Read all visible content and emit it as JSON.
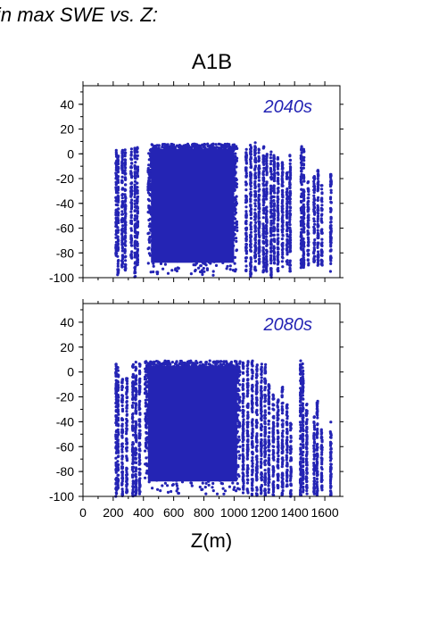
{
  "page_title": "in max SWE vs. Z:",
  "chart_data": {
    "type": "scatter",
    "title": "A1B",
    "xlabel": "Z(m)",
    "ylabel": "",
    "xlim": [
      0,
      1700
    ],
    "ylim": [
      -100,
      55
    ],
    "xticks": [
      0,
      200,
      400,
      600,
      800,
      1000,
      1200,
      1400,
      1600
    ],
    "xtick_labels": [
      "0",
      "200",
      "400",
      "600",
      "800",
      "1000",
      "1200",
      "1400",
      "1600"
    ],
    "yticks": [
      -100,
      -80,
      -60,
      -40,
      -20,
      0,
      20,
      40
    ],
    "marker_color": "#2424b4",
    "panels": [
      {
        "label": "2040s",
        "columns": [
          {
            "z": 220,
            "ymin": -83,
            "ymax": 3
          },
          {
            "z": 232,
            "ymin": -100,
            "ymax": 2
          },
          {
            "z": 260,
            "ymin": -92,
            "ymax": 4
          },
          {
            "z": 280,
            "ymin": -95,
            "ymax": 5
          },
          {
            "z": 320,
            "ymin": -85,
            "ymax": 5
          },
          {
            "z": 345,
            "ymin": -100,
            "ymax": 5
          },
          {
            "z": 360,
            "ymin": -90,
            "ymax": 6
          },
          {
            "z": 1080,
            "ymin": -95,
            "ymax": 6
          },
          {
            "z": 1110,
            "ymin": -100,
            "ymax": 8
          },
          {
            "z": 1140,
            "ymin": -95,
            "ymax": 10
          },
          {
            "z": 1165,
            "ymin": -90,
            "ymax": 5
          },
          {
            "z": 1195,
            "ymin": -98,
            "ymax": 7
          },
          {
            "z": 1215,
            "ymin": -95,
            "ymax": 4
          },
          {
            "z": 1245,
            "ymin": -100,
            "ymax": 2
          },
          {
            "z": 1265,
            "ymin": -90,
            "ymax": 0
          },
          {
            "z": 1290,
            "ymin": -95,
            "ymax": -2
          },
          {
            "z": 1320,
            "ymin": -92,
            "ymax": -5
          },
          {
            "z": 1350,
            "ymin": -90,
            "ymax": -15
          },
          {
            "z": 1370,
            "ymin": -95,
            "ymax": 0
          },
          {
            "z": 1445,
            "ymin": -95,
            "ymax": 6
          },
          {
            "z": 1460,
            "ymin": -92,
            "ymax": 4
          },
          {
            "z": 1490,
            "ymin": -90,
            "ymax": -22
          },
          {
            "z": 1530,
            "ymin": -88,
            "ymax": -18
          },
          {
            "z": 1555,
            "ymin": -92,
            "ymax": -12
          },
          {
            "z": 1580,
            "ymin": -90,
            "ymax": -25
          },
          {
            "z": 1640,
            "ymin": -95,
            "ymax": -16
          }
        ],
        "dense_block": {
          "zmin": 430,
          "zmax": 1020,
          "ymin": -100,
          "ymax": 8
        }
      },
      {
        "label": "2080s",
        "columns": [
          {
            "z": 220,
            "ymin": -100,
            "ymax": 7
          },
          {
            "z": 232,
            "ymin": -95,
            "ymax": 4
          },
          {
            "z": 260,
            "ymin": -100,
            "ymax": -3
          },
          {
            "z": 290,
            "ymin": -98,
            "ymax": -5
          },
          {
            "z": 330,
            "ymin": -100,
            "ymax": 6
          },
          {
            "z": 350,
            "ymin": -100,
            "ymax": 8
          },
          {
            "z": 375,
            "ymin": -100,
            "ymax": 8
          },
          {
            "z": 1060,
            "ymin": -100,
            "ymax": 9
          },
          {
            "z": 1090,
            "ymin": -100,
            "ymax": 9
          },
          {
            "z": 1120,
            "ymin": -100,
            "ymax": 9
          },
          {
            "z": 1150,
            "ymin": -100,
            "ymax": 8
          },
          {
            "z": 1180,
            "ymin": -100,
            "ymax": 7
          },
          {
            "z": 1205,
            "ymin": -100,
            "ymax": 6
          },
          {
            "z": 1230,
            "ymin": -100,
            "ymax": -10
          },
          {
            "z": 1260,
            "ymin": -100,
            "ymax": -18
          },
          {
            "z": 1290,
            "ymin": -95,
            "ymax": -22
          },
          {
            "z": 1320,
            "ymin": -100,
            "ymax": -12
          },
          {
            "z": 1350,
            "ymin": -95,
            "ymax": -25
          },
          {
            "z": 1375,
            "ymin": -100,
            "ymax": -40
          },
          {
            "z": 1440,
            "ymin": -100,
            "ymax": 10
          },
          {
            "z": 1455,
            "ymin": -98,
            "ymax": 8
          },
          {
            "z": 1480,
            "ymin": -100,
            "ymax": -25
          },
          {
            "z": 1530,
            "ymin": -98,
            "ymax": -35
          },
          {
            "z": 1550,
            "ymin": -100,
            "ymax": -20
          },
          {
            "z": 1580,
            "ymin": -95,
            "ymax": -45
          },
          {
            "z": 1640,
            "ymin": -100,
            "ymax": -40
          }
        ],
        "dense_block": {
          "zmin": 410,
          "zmax": 1040,
          "ymin": -100,
          "ymax": 9
        }
      }
    ]
  }
}
